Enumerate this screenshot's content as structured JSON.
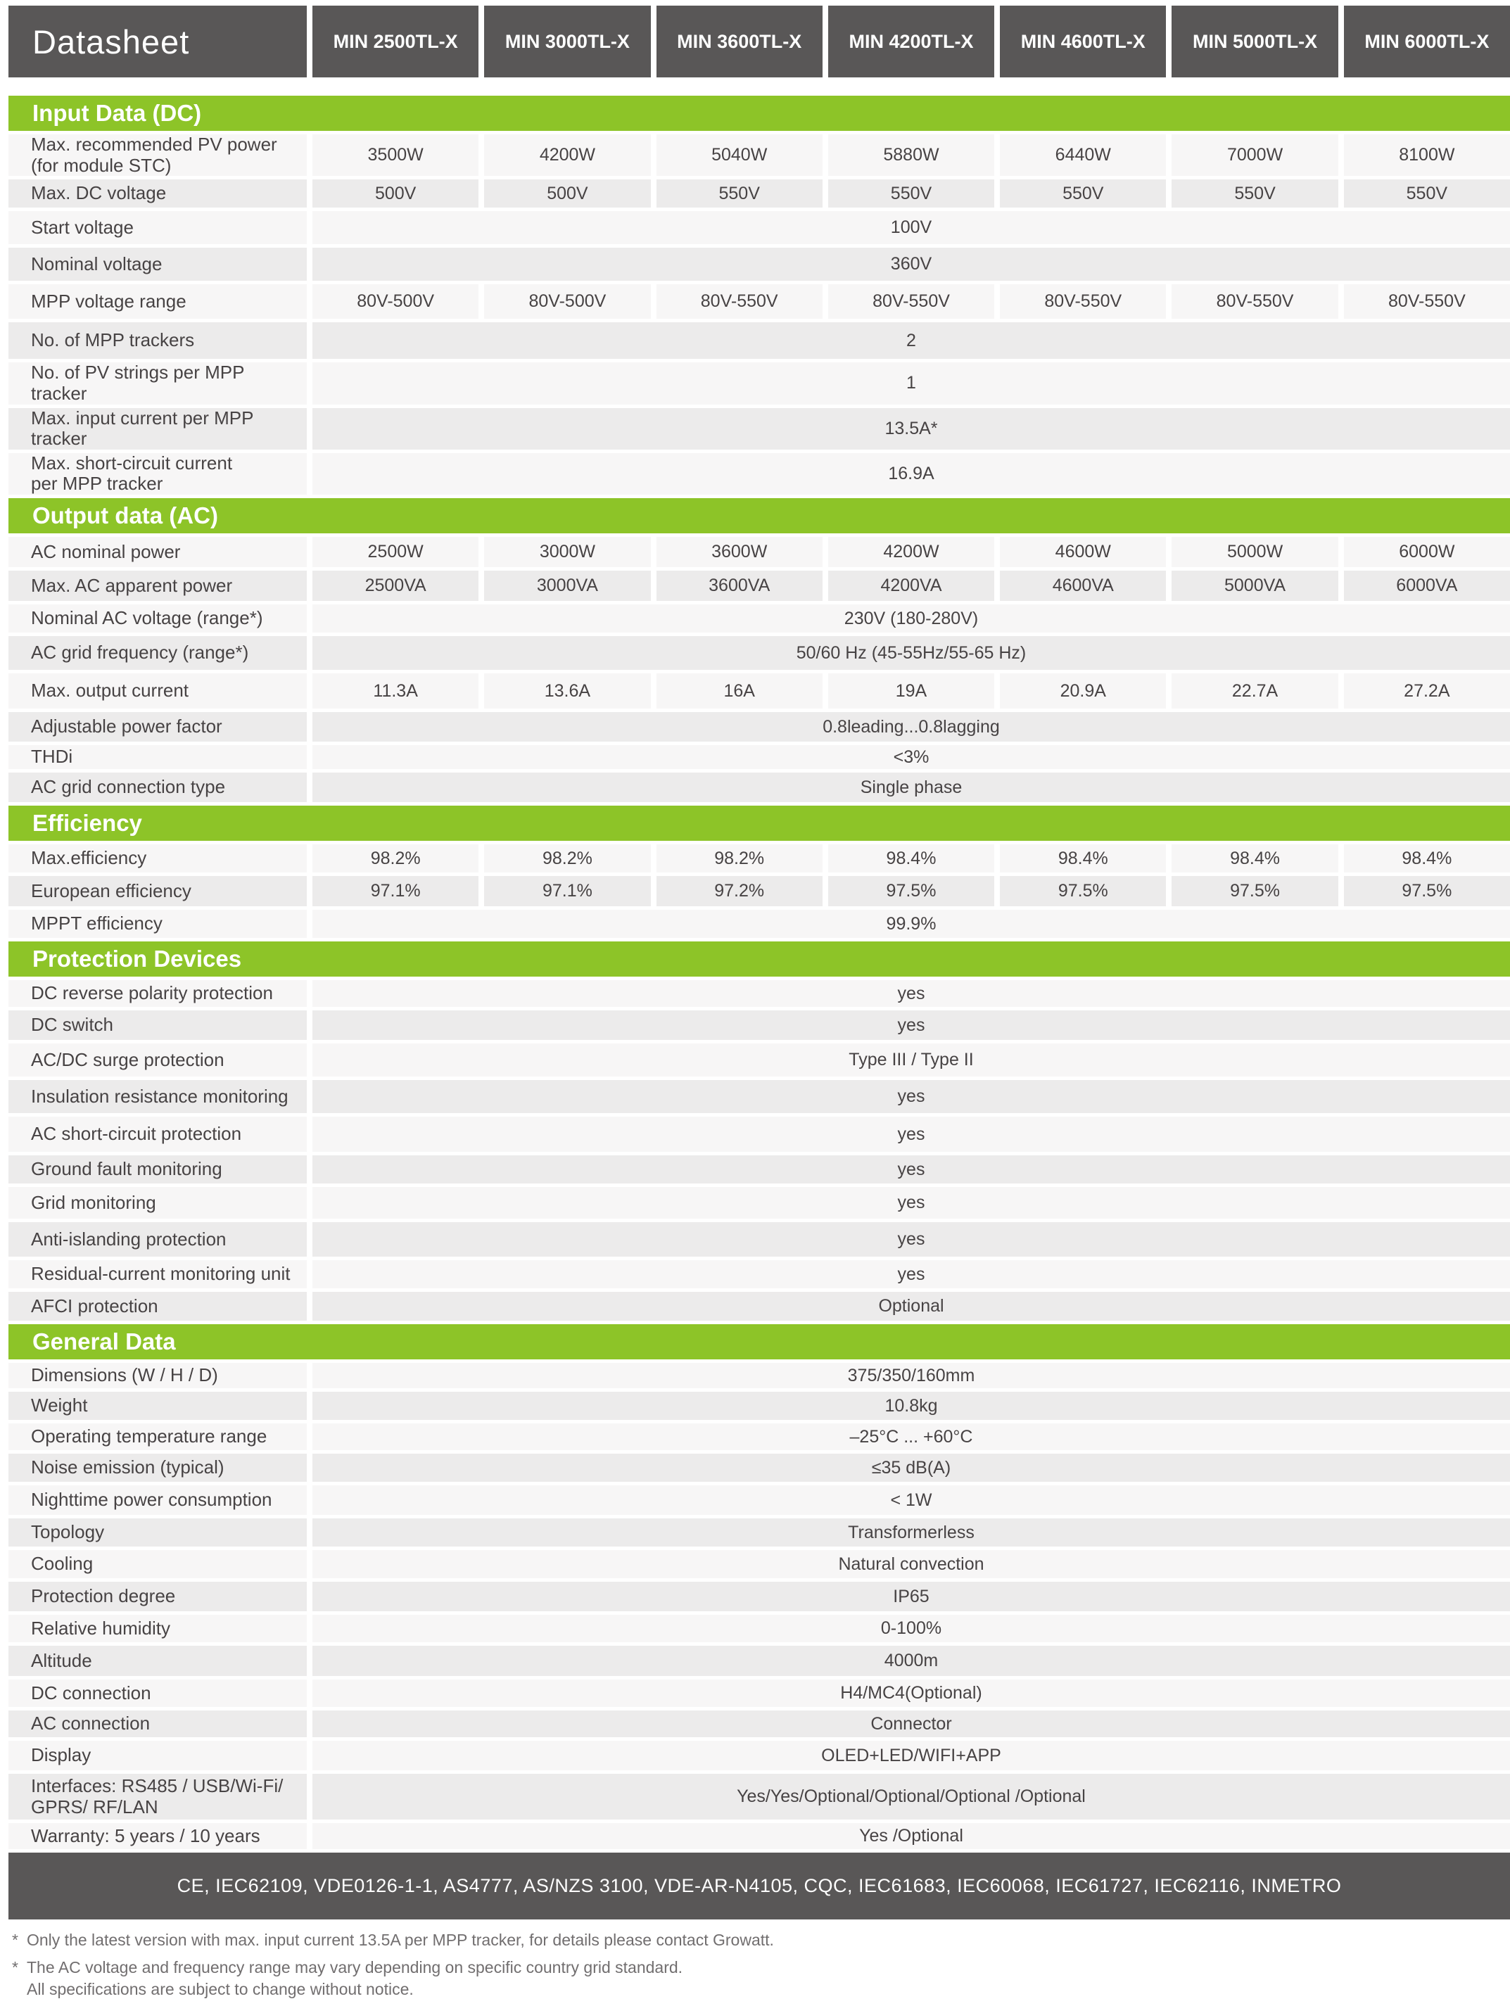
{
  "header": {
    "title": "Datasheet",
    "models": [
      "MIN 2500TL-X",
      "MIN 3000TL-X",
      "MIN 3600TL-X",
      "MIN 4200TL-X",
      "MIN 4600TL-X",
      "MIN 5000TL-X",
      "MIN 6000TL-X"
    ]
  },
  "sections": [
    {
      "title": "Input Data (DC)",
      "rows": [
        {
          "label": "Max. recommended PV power\n(for module STC)",
          "values": [
            "3500W",
            "4200W",
            "5040W",
            "5880W",
            "6440W",
            "7000W",
            "8100W"
          ]
        },
        {
          "label": "Max. DC voltage",
          "values": [
            "500V",
            "500V",
            "550V",
            "550V",
            "550V",
            "550V",
            "550V"
          ]
        },
        {
          "label": "Start voltage",
          "span": "100V"
        },
        {
          "label": "Nominal voltage",
          "span": "360V"
        },
        {
          "label": "MPP voltage range",
          "values": [
            "80V-500V",
            "80V-500V",
            "80V-550V",
            "80V-550V",
            "80V-550V",
            "80V-550V",
            "80V-550V"
          ]
        },
        {
          "label": "No. of MPP trackers",
          "span": "2"
        },
        {
          "label": "No. of PV strings per MPP tracker",
          "span": "1"
        },
        {
          "label": "Max. input current per MPP tracker",
          "span": "13.5A*"
        },
        {
          "label": "Max. short-circuit current\nper MPP tracker",
          "span": "16.9A"
        }
      ]
    },
    {
      "title": "Output data (AC)",
      "rows": [
        {
          "label": "AC nominal power",
          "values": [
            "2500W",
            "3000W",
            "3600W",
            "4200W",
            "4600W",
            "5000W",
            "6000W"
          ]
        },
        {
          "label": "Max. AC apparent power",
          "values": [
            "2500VA",
            "3000VA",
            "3600VA",
            "4200VA",
            "4600VA",
            "5000VA",
            "6000VA"
          ]
        },
        {
          "label": "Nominal AC voltage (range*)",
          "span": "230V (180-280V)"
        },
        {
          "label": "AC grid frequency (range*)",
          "span": "50/60 Hz (45-55Hz/55-65 Hz)"
        },
        {
          "label": "Max. output current",
          "values": [
            "11.3A",
            "13.6A",
            "16A",
            "19A",
            "20.9A",
            "22.7A",
            "27.2A"
          ]
        },
        {
          "label": "Adjustable power factor",
          "span": "0.8leading...0.8lagging"
        },
        {
          "label": "THDi",
          "span": "<3%"
        },
        {
          "label": "AC grid connection type",
          "span": "Single phase"
        }
      ]
    },
    {
      "title": "Efficiency",
      "rows": [
        {
          "label": "Max.efficiency",
          "values": [
            "98.2%",
            "98.2%",
            "98.2%",
            "98.4%",
            "98.4%",
            "98.4%",
            "98.4%"
          ]
        },
        {
          "label": "European efficiency",
          "values": [
            "97.1%",
            "97.1%",
            "97.2%",
            "97.5%",
            "97.5%",
            "97.5%",
            "97.5%"
          ]
        },
        {
          "label": "MPPT efficiency",
          "span": "99.9%"
        }
      ]
    },
    {
      "title": "Protection Devices",
      "rows": [
        {
          "label": "DC reverse polarity protection",
          "span": "yes"
        },
        {
          "label": "DC switch",
          "span": "yes"
        },
        {
          "label": "AC/DC surge protection",
          "span": "Type III / Type II"
        },
        {
          "label": "Insulation resistance monitoring",
          "span": "yes"
        },
        {
          "label": "AC short-circuit protection",
          "span": "yes"
        },
        {
          "label": "Ground fault monitoring",
          "span": "yes"
        },
        {
          "label": "Grid monitoring",
          "span": "yes"
        },
        {
          "label": "Anti-islanding protection",
          "span": "yes"
        },
        {
          "label": "Residual-current monitoring unit",
          "span": "yes"
        },
        {
          "label": "AFCI protection",
          "span": "Optional"
        }
      ]
    },
    {
      "title": "General Data",
      "rows": [
        {
          "label": "Dimensions (W / H / D)",
          "span": "375/350/160mm"
        },
        {
          "label": "Weight",
          "span": "10.8kg"
        },
        {
          "label": "Operating temperature range",
          "span": "–25°C ... +60°C"
        },
        {
          "label": "Noise emission (typical)",
          "span": "≤35 dB(A)"
        },
        {
          "label": "Nighttime power consumption",
          "span": "< 1W"
        },
        {
          "label": "Topology",
          "span": "Transformerless"
        },
        {
          "label": "Cooling",
          "span": "Natural convection"
        },
        {
          "label": "Protection degree",
          "span": "IP65"
        },
        {
          "label": "Relative humidity",
          "span": "0-100%"
        },
        {
          "label": "Altitude",
          "span": "4000m"
        },
        {
          "label": "DC connection",
          "span": "H4/MC4(Optional)"
        },
        {
          "label": "AC connection",
          "span": "Connector"
        },
        {
          "label": "Display",
          "span": "OLED+LED/WIFI+APP"
        },
        {
          "label": "Interfaces: RS485 / USB/Wi-Fi/\nGPRS/ RF/LAN",
          "span": "Yes/Yes/Optional/Optional/Optional /Optional"
        },
        {
          "label": "Warranty: 5 years / 10 years",
          "span": "Yes /Optional"
        }
      ]
    }
  ],
  "footer": {
    "certifications": "CE, IEC62109, VDE0126-1-1, AS4777, AS/NZS 3100, VDE-AR-N4105, CQC, IEC61683, IEC60068, IEC61727, IEC62116, INMETRO",
    "footnotes": [
      {
        "marker": "*",
        "lines": [
          "Only the latest version with max. input current 13.5A per MPP tracker, for details please contact Growatt."
        ]
      },
      {
        "marker": "*",
        "lines": [
          "The AC voltage and frequency range may vary depending on specific country grid standard.",
          "All specifications are subject to change without notice."
        ]
      }
    ]
  },
  "colors": {
    "accent_green": "#8dc428",
    "header_gray": "#595757",
    "row_light": "#f7f6f6",
    "row_dark": "#ecebeb"
  }
}
